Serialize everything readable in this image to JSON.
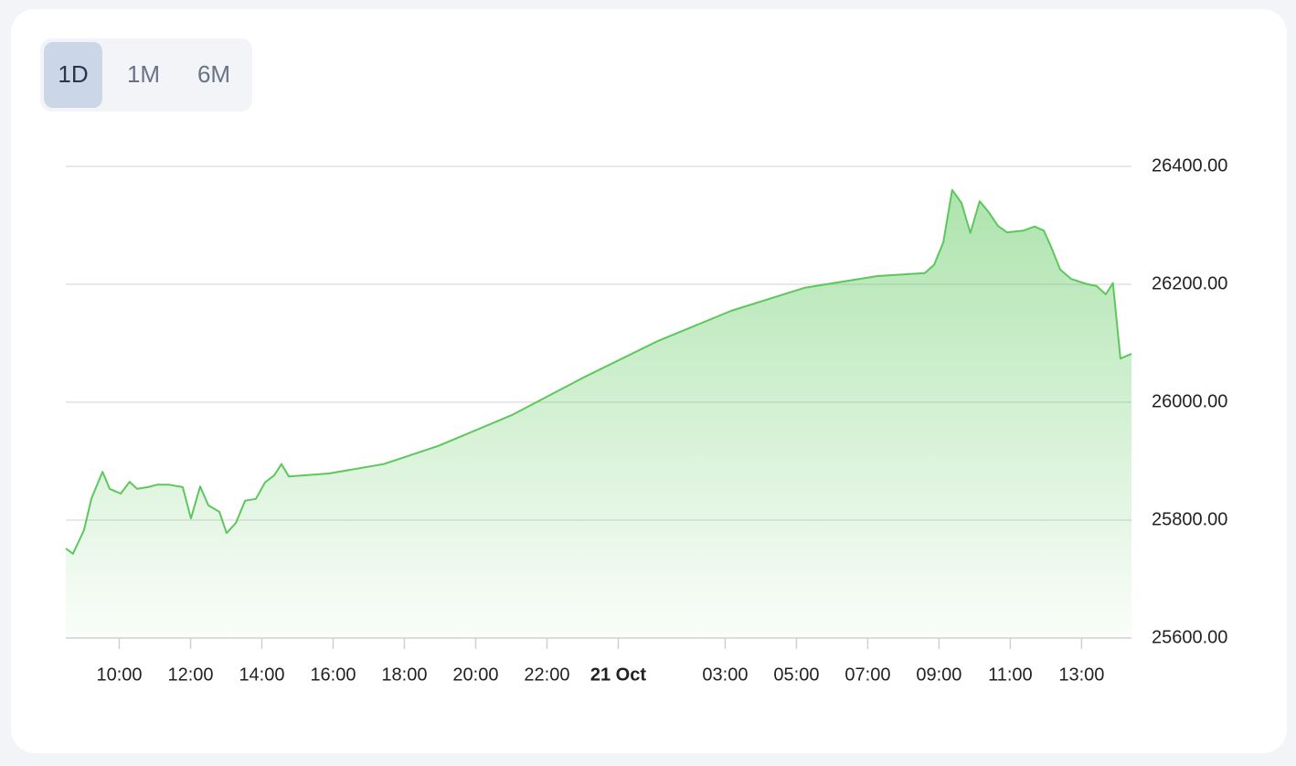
{
  "tabs": {
    "options": [
      "1D",
      "1M",
      "6M"
    ],
    "active_index": 0
  },
  "chart_data": {
    "type": "area",
    "color": "#5cc85c",
    "grid": true,
    "x": [
      8.5,
      8.7,
      9.01,
      9.22,
      9.53,
      9.73,
      10.04,
      10.29,
      10.5,
      10.81,
      11.06,
      11.4,
      11.78,
      12.01,
      12.27,
      12.5,
      12.81,
      13.01,
      13.27,
      13.53,
      13.83,
      14.09,
      14.35,
      14.55,
      14.76,
      15.88,
      17.42,
      18.96,
      21.01,
      23.06,
      25.12,
      27.17,
      29.22,
      31.27,
      32.6,
      32.86,
      33.12,
      33.37,
      33.63,
      33.88,
      34.14,
      34.4,
      34.65,
      34.91,
      35.37,
      35.68,
      35.94,
      36.14,
      36.4,
      36.71,
      37.17,
      37.42,
      37.68,
      37.88,
      38.09,
      38.4
    ],
    "values": [
      25752,
      25743,
      25783,
      25837,
      25882,
      25853,
      25845,
      25865,
      25853,
      25856,
      25860,
      25860,
      25856,
      25803,
      25857,
      25825,
      25814,
      25778,
      25795,
      25833,
      25836,
      25864,
      25876,
      25895,
      25874,
      25879,
      25895,
      25926,
      25978,
      26043,
      26104,
      26155,
      26194,
      26214,
      26219,
      26233,
      26271,
      26360,
      26338,
      26287,
      26341,
      26322,
      26299,
      26288,
      26291,
      26298,
      26291,
      26264,
      26225,
      26209,
      26200,
      26197,
      26183,
      26202,
      26074,
      26082
    ],
    "xlim": [
      8.5,
      38.4
    ],
    "xticks": [
      {
        "value": 10,
        "label": "10:00"
      },
      {
        "value": 12,
        "label": "12:00"
      },
      {
        "value": 14,
        "label": "14:00"
      },
      {
        "value": 16,
        "label": "16:00"
      },
      {
        "value": 18,
        "label": "18:00"
      },
      {
        "value": 20,
        "label": "20:00"
      },
      {
        "value": 22,
        "label": "22:00"
      },
      {
        "value": 24,
        "label": "21 Oct",
        "bold": true
      },
      {
        "value": 27,
        "label": "03:00"
      },
      {
        "value": 29,
        "label": "05:00"
      },
      {
        "value": 31,
        "label": "07:00"
      },
      {
        "value": 33,
        "label": "09:00"
      },
      {
        "value": 35,
        "label": "11:00"
      },
      {
        "value": 37,
        "label": "13:00"
      }
    ],
    "ylim": [
      25600,
      26400
    ],
    "yticks": [
      {
        "value": 25600,
        "label": "25600.00"
      },
      {
        "value": 25800,
        "label": "25800.00"
      },
      {
        "value": 26000,
        "label": "26000.00"
      },
      {
        "value": 26200,
        "label": "26200.00"
      },
      {
        "value": 26400,
        "label": "26400.00"
      }
    ]
  }
}
